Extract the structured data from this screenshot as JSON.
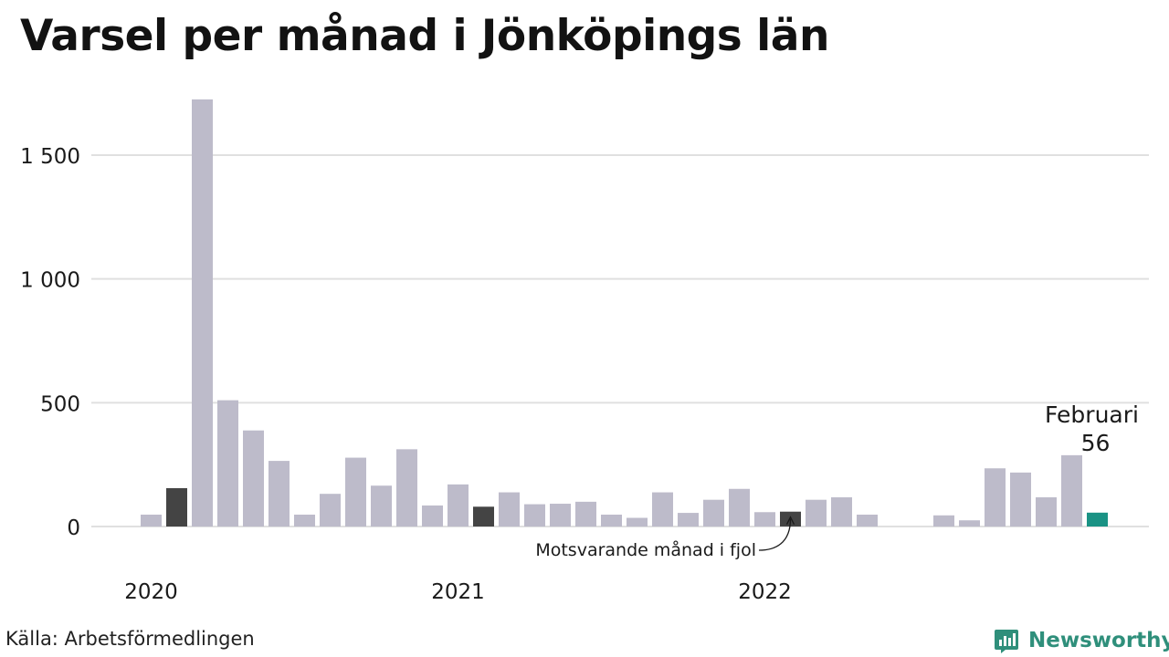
{
  "title": "Varsel per månad i Jönköpings län",
  "source": "Källa: Arbetsförmedlingen",
  "brand": "Newsworthy",
  "colors": {
    "bar": "#bdbbca",
    "previous_year": "#444444",
    "current": "#1a9284",
    "grid": "#e0e0e0",
    "brand": "#2f8f7b"
  },
  "chart_data": {
    "type": "bar",
    "ylim": [
      0,
      1750
    ],
    "yticks": [
      0,
      500,
      1000,
      1500
    ],
    "ytick_labels": [
      "0",
      "500",
      "1 000",
      "1 500"
    ],
    "xtick_labels": [
      {
        "label": "2020",
        "index": 0
      },
      {
        "label": "2021",
        "index": 12
      },
      {
        "label": "2022",
        "index": 24
      }
    ],
    "categories": [
      "2020-01",
      "2020-02",
      "2020-03",
      "2020-04",
      "2020-05",
      "2020-06",
      "2020-07",
      "2020-08",
      "2020-09",
      "2020-10",
      "2020-11",
      "2020-12",
      "2021-01",
      "2021-02",
      "2021-03",
      "2021-04",
      "2021-05",
      "2021-06",
      "2021-07",
      "2021-08",
      "2021-09",
      "2021-10",
      "2021-11",
      "2021-12",
      "2022-01",
      "2022-02",
      "2022-03",
      "2022-04",
      "2022-05",
      "2022-06",
      "2022-07",
      "2022-08",
      "2022-09",
      "2022-10",
      "2022-11",
      "2022-12",
      "2023-01",
      "2023-02"
    ],
    "values": [
      48,
      155,
      1725,
      510,
      388,
      265,
      48,
      132,
      278,
      165,
      312,
      85,
      170,
      80,
      138,
      90,
      92,
      100,
      48,
      35,
      138,
      55,
      108,
      152,
      58,
      60,
      108,
      118,
      48,
      0,
      0,
      45,
      25,
      235,
      218,
      118,
      288,
      56
    ],
    "highlight_previous_year": [
      1,
      13,
      25
    ],
    "highlight_current": 37,
    "annotations": {
      "current_month": "Februari",
      "current_value": "56",
      "previous_year_note": "Motsvarande månad i fjol"
    }
  }
}
